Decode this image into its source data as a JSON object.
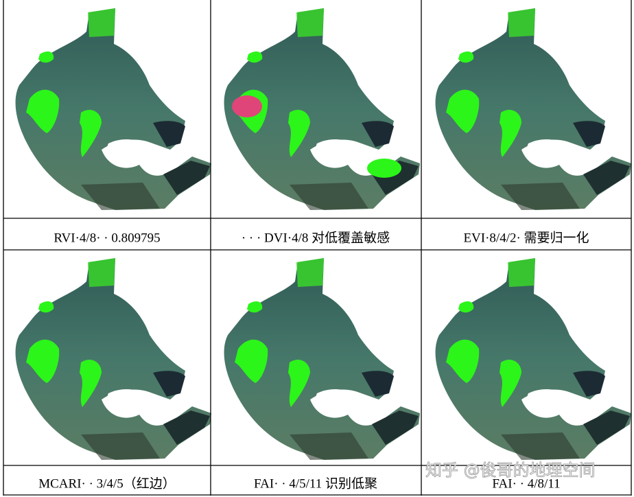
{
  "table": {
    "rows": [
      {
        "captions": [
          "RVI·4/8· · 0.809795",
          "· · · DVI·4/8 对低覆盖敏感",
          "EVI·8/4/2· 需要归一化"
        ]
      },
      {
        "captions": [
          "MCARI· · 3/4/5（红边）",
          "FAI· · 4/5/11 识别低聚",
          "FAI· · 4/8/11"
        ]
      }
    ]
  },
  "watermark": "知乎 @俊哥的地理空间"
}
